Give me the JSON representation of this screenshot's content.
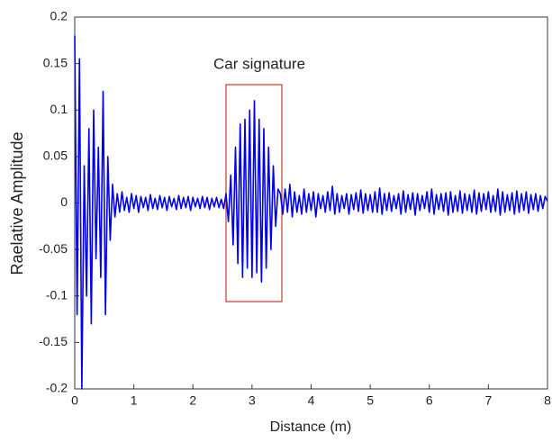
{
  "chart_data": {
    "type": "line",
    "annotation": "Car signature",
    "xlabel": "Distance (m)",
    "ylabel": "Raelative Amplitude",
    "color": "#0000ee",
    "xlim": [
      0,
      8
    ],
    "ylim": [
      -0.2,
      0.2
    ],
    "xticks": [
      0,
      1,
      2,
      3,
      4,
      5,
      6,
      7,
      8
    ],
    "yticks": [
      -0.2,
      -0.15,
      -0.1,
      -0.05,
      0,
      0.05,
      0.1,
      0.15,
      0.2
    ],
    "x": [
      0,
      0.04,
      0.08,
      0.12,
      0.16,
      0.2,
      0.24,
      0.28,
      0.32,
      0.36,
      0.4,
      0.44,
      0.48,
      0.52,
      0.56,
      0.6,
      0.64,
      0.68,
      0.72,
      0.76,
      0.8,
      0.84,
      0.88,
      0.92,
      0.96,
      1,
      1.04,
      1.08,
      1.12,
      1.16,
      1.2,
      1.24,
      1.28,
      1.32,
      1.36,
      1.4,
      1.44,
      1.48,
      1.52,
      1.56,
      1.6,
      1.64,
      1.68,
      1.72,
      1.76,
      1.8,
      1.84,
      1.88,
      1.92,
      1.96,
      2,
      2.04,
      2.08,
      2.12,
      2.16,
      2.2,
      2.24,
      2.28,
      2.32,
      2.36,
      2.4,
      2.44,
      2.48,
      2.52,
      2.56,
      2.6,
      2.64,
      2.68,
      2.72,
      2.76,
      2.8,
      2.84,
      2.88,
      2.92,
      2.96,
      3,
      3.04,
      3.08,
      3.12,
      3.16,
      3.2,
      3.24,
      3.28,
      3.32,
      3.36,
      3.4,
      3.44,
      3.48,
      3.52,
      3.56,
      3.6,
      3.64,
      3.68,
      3.72,
      3.76,
      3.8,
      3.84,
      3.88,
      3.92,
      3.96,
      4,
      4.04,
      4.08,
      4.12,
      4.16,
      4.2,
      4.24,
      4.28,
      4.32,
      4.36,
      4.4,
      4.44,
      4.48,
      4.52,
      4.56,
      4.6,
      4.64,
      4.68,
      4.72,
      4.76,
      4.8,
      4.84,
      4.88,
      4.92,
      4.96,
      5,
      5.04,
      5.08,
      5.12,
      5.16,
      5.2,
      5.24,
      5.28,
      5.32,
      5.36,
      5.4,
      5.44,
      5.48,
      5.52,
      5.56,
      5.6,
      5.64,
      5.68,
      5.72,
      5.76,
      5.8,
      5.84,
      5.88,
      5.92,
      5.96,
      6,
      6.04,
      6.08,
      6.12,
      6.16,
      6.2,
      6.24,
      6.28,
      6.32,
      6.36,
      6.4,
      6.44,
      6.48,
      6.52,
      6.56,
      6.6,
      6.64,
      6.68,
      6.72,
      6.76,
      6.8,
      6.84,
      6.88,
      6.92,
      6.96,
      7,
      7.04,
      7.08,
      7.12,
      7.16,
      7.2,
      7.24,
      7.28,
      7.32,
      7.36,
      7.4,
      7.44,
      7.48,
      7.52,
      7.56,
      7.6,
      7.64,
      7.68,
      7.72,
      7.76,
      7.8,
      7.84,
      7.88,
      7.92,
      7.96,
      8
    ],
    "values": [
      0.18,
      -0.12,
      0.155,
      -0.2,
      0.04,
      -0.1,
      0.08,
      -0.13,
      0.1,
      -0.06,
      0.06,
      -0.08,
      0.12,
      -0.12,
      0.05,
      -0.04,
      0.02,
      -0.015,
      0.01,
      -0.01,
      0.012,
      -0.008,
      0.006,
      -0.01,
      0.01,
      -0.006,
      0.008,
      -0.01,
      0.007,
      -0.005,
      0.006,
      -0.008,
      0.009,
      -0.006,
      0.005,
      -0.007,
      0.008,
      -0.005,
      0.006,
      -0.008,
      0.007,
      -0.004,
      0.005,
      -0.007,
      0.008,
      -0.006,
      0.006,
      -0.005,
      0.007,
      -0.008,
      0.006,
      -0.004,
      0.005,
      -0.006,
      0.007,
      -0.005,
      0.006,
      -0.007,
      0.005,
      -0.004,
      0.006,
      -0.005,
      0.004,
      -0.006,
      0.01,
      -0.02,
      0.03,
      -0.045,
      0.06,
      -0.065,
      0.085,
      -0.08,
      0.09,
      -0.07,
      0.1,
      -0.08,
      0.11,
      -0.075,
      0.09,
      -0.085,
      0.08,
      -0.07,
      0.06,
      -0.05,
      0.04,
      -0.025,
      0.015,
      0.01,
      -0.012,
      0.015,
      -0.01,
      0.02,
      -0.015,
      0.012,
      -0.01,
      0.008,
      -0.012,
      0.015,
      -0.01,
      0.01,
      -0.008,
      0.012,
      -0.015,
      0.01,
      -0.006,
      0.008,
      -0.01,
      0.012,
      -0.008,
      0.018,
      -0.012,
      0.01,
      -0.01,
      0.008,
      -0.006,
      0.01,
      -0.012,
      0.009,
      -0.007,
      0.011,
      -0.009,
      0.014,
      -0.011,
      0.01,
      -0.008,
      0.009,
      -0.01,
      0.012,
      -0.01,
      0.016,
      -0.012,
      0.01,
      -0.008,
      0.011,
      -0.009,
      0.008,
      -0.006,
      0.01,
      -0.012,
      0.013,
      -0.01,
      0.009,
      -0.007,
      0.011,
      -0.013,
      0.01,
      -0.008,
      0.008,
      -0.006,
      0.012,
      -0.01,
      0.015,
      -0.012,
      0.009,
      -0.007,
      0.01,
      -0.009,
      0.011,
      -0.013,
      0.012,
      -0.01,
      0.008,
      -0.009,
      0.013,
      -0.011,
      0.01,
      -0.008,
      0.009,
      -0.01,
      0.014,
      -0.012,
      0.011,
      -0.009,
      0.01,
      -0.007,
      0.012,
      -0.01,
      0.008,
      -0.009,
      0.015,
      -0.013,
      0.012,
      -0.01,
      0.009,
      -0.008,
      0.011,
      -0.012,
      0.013,
      -0.01,
      0.01,
      -0.008,
      0.012,
      -0.011,
      0.009,
      -0.007,
      0.01,
      -0.009,
      0.008,
      -0.006,
      0.007,
      0.002
    ]
  }
}
